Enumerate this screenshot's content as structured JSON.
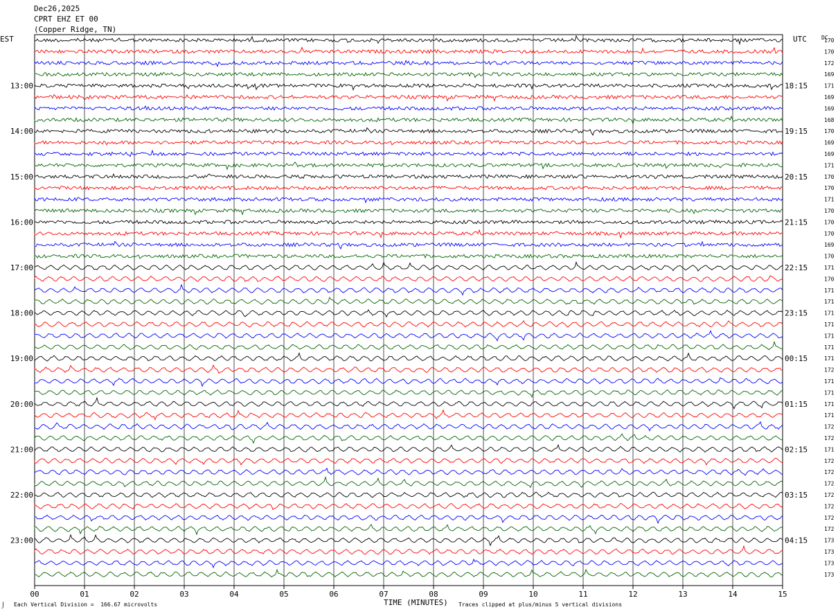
{
  "header": {
    "date": "Dec26,2025",
    "station": "CPRT EHZ ET 00",
    "location": "(Copper Ridge, TN)"
  },
  "footer": {
    "vertical_division": "Each Vertical Division =  166.67 microvolts",
    "clipping_note": "Traces clipped at plus/minus 5 vertical divisions",
    "corner_mark": "⌡"
  },
  "chart_data": {
    "type": "helicorder",
    "title": "",
    "xlabel": "TIME (MINUTES)",
    "x_ticks": [
      "00",
      "01",
      "02",
      "03",
      "04",
      "05",
      "06",
      "07",
      "08",
      "09",
      "10",
      "11",
      "12",
      "13",
      "14",
      "15"
    ],
    "xlim": [
      0,
      15
    ],
    "left_axis_label": "EST",
    "right_axis_label": "UTC",
    "dc_label": "DC",
    "grid": "vertical lines every minute",
    "series_colors": [
      "#000000",
      "#ff0000",
      "#0000ff",
      "#006400"
    ],
    "hour_labels_left": [
      "13:00",
      "14:00",
      "15:00",
      "16:00",
      "17:00",
      "18:00",
      "19:00",
      "20:00",
      "21:00",
      "22:00",
      "23:00"
    ],
    "hour_labels_right": [
      "18:15",
      "19:15",
      "20:15",
      "21:15",
      "22:15",
      "23:15",
      "00:15",
      "01:15",
      "02:15",
      "03:15",
      "04:15"
    ],
    "dc_offsets": [
      170,
      170,
      172,
      169,
      171,
      169,
      169,
      168,
      170,
      169,
      169,
      171,
      170,
      170,
      171,
      170,
      170,
      170,
      169,
      170,
      171,
      170,
      171,
      171,
      171,
      171,
      171,
      171,
      171,
      172,
      171,
      171,
      171,
      171,
      172,
      172,
      171,
      172,
      172,
      172,
      172,
      172,
      172,
      172,
      173,
      173,
      173,
      173
    ],
    "num_traces": 48,
    "first_labeled_trace_index": 4,
    "traces_per_hour": 4
  }
}
